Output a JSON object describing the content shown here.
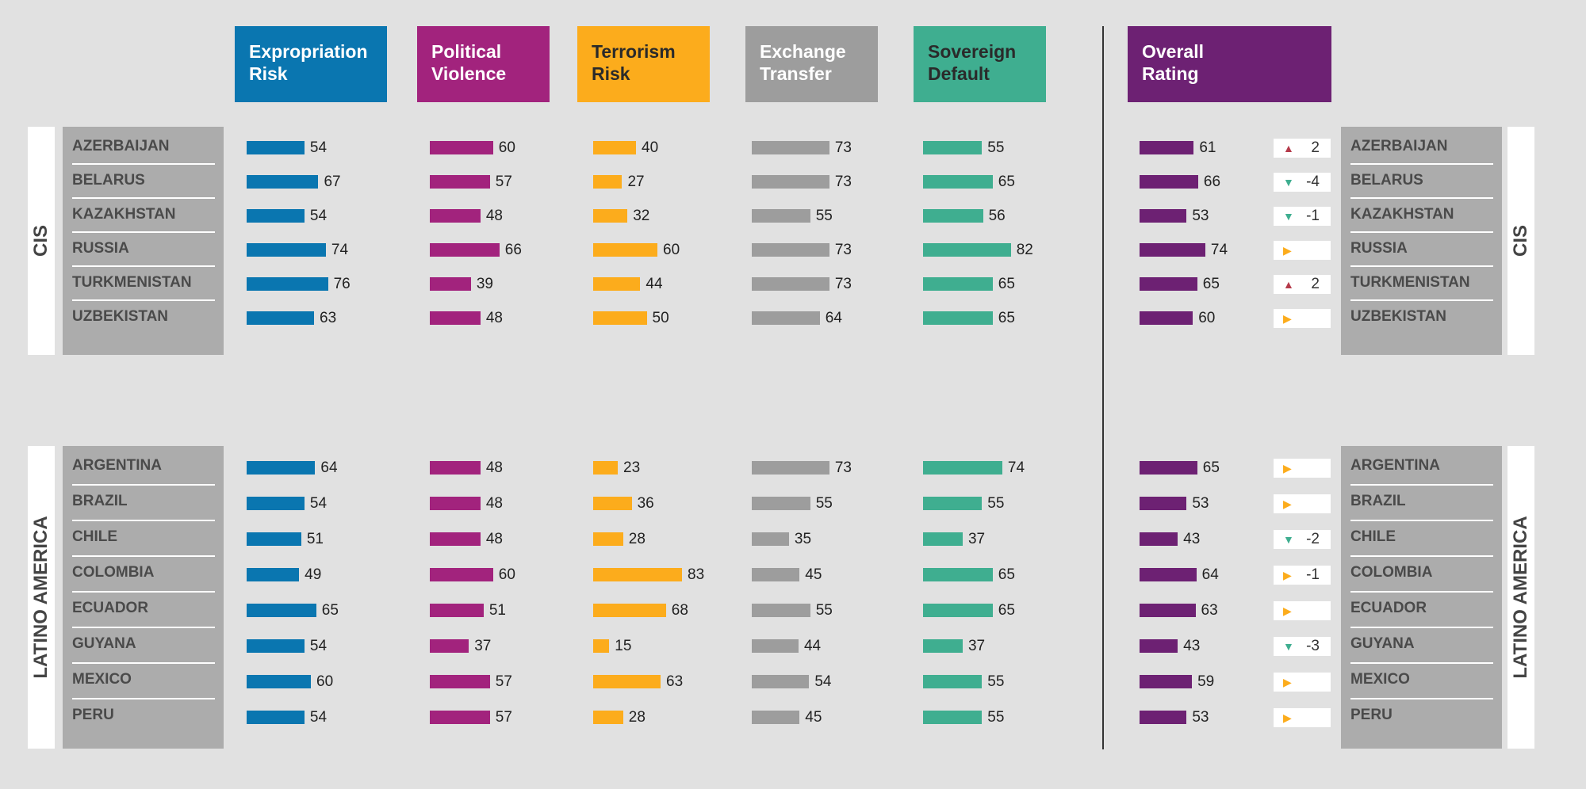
{
  "colors": {
    "expropriation": "#0a76b0",
    "political": "#a2237d",
    "terrorism": "#fcac1c",
    "exchange": "#9d9d9d",
    "sovereign": "#3fae90",
    "overall": "#6d2173",
    "up": "#b53a4a",
    "down": "#3fae90",
    "neutral": "#fcac1c"
  },
  "chart_data": {
    "type": "bar",
    "columns": [
      {
        "key": "expropriation",
        "label": "Expropriation\nRisk"
      },
      {
        "key": "political",
        "label": "Political\nViolence"
      },
      {
        "key": "terrorism",
        "label": "Terrorism\nRisk"
      },
      {
        "key": "exchange",
        "label": "Exchange\nTransfer"
      },
      {
        "key": "sovereign",
        "label": "Sovereign\nDefault"
      },
      {
        "key": "overall",
        "label": "Overall\nRating"
      }
    ],
    "regions": [
      {
        "name": "CIS",
        "countries": [
          {
            "name": "AZERBAIJAN",
            "expropriation": 54,
            "political": 60,
            "terrorism": 40,
            "exchange": 73,
            "sovereign": 55,
            "overall": 61,
            "change": "2",
            "direction": "up"
          },
          {
            "name": "BELARUS",
            "expropriation": 67,
            "political": 57,
            "terrorism": 27,
            "exchange": 73,
            "sovereign": 65,
            "overall": 66,
            "change": "-4",
            "direction": "down"
          },
          {
            "name": "KAZAKHSTAN",
            "expropriation": 54,
            "political": 48,
            "terrorism": 32,
            "exchange": 55,
            "sovereign": 56,
            "overall": 53,
            "change": "-1",
            "direction": "down"
          },
          {
            "name": "RUSSIA",
            "expropriation": 74,
            "political": 66,
            "terrorism": 60,
            "exchange": 73,
            "sovereign": 82,
            "overall": 74,
            "change": "",
            "direction": "neutral"
          },
          {
            "name": "TURKMENISTAN",
            "expropriation": 76,
            "political": 39,
            "terrorism": 44,
            "exchange": 73,
            "sovereign": 65,
            "overall": 65,
            "change": "2",
            "direction": "up"
          },
          {
            "name": "UZBEKISTAN",
            "expropriation": 63,
            "political": 48,
            "terrorism": 50,
            "exchange": 64,
            "sovereign": 65,
            "overall": 60,
            "change": "",
            "direction": "neutral"
          }
        ]
      },
      {
        "name": "LATINO AMERICA",
        "countries": [
          {
            "name": "ARGENTINA",
            "expropriation": 64,
            "political": 48,
            "terrorism": 23,
            "exchange": 73,
            "sovereign": 74,
            "overall": 65,
            "change": "",
            "direction": "neutral"
          },
          {
            "name": "BRAZIL",
            "expropriation": 54,
            "political": 48,
            "terrorism": 36,
            "exchange": 55,
            "sovereign": 55,
            "overall": 53,
            "change": "",
            "direction": "neutral"
          },
          {
            "name": "CHILE",
            "expropriation": 51,
            "political": 48,
            "terrorism": 28,
            "exchange": 35,
            "sovereign": 37,
            "overall": 43,
            "change": "-2",
            "direction": "down"
          },
          {
            "name": "COLOMBIA",
            "expropriation": 49,
            "political": 60,
            "terrorism": 83,
            "exchange": 45,
            "sovereign": 65,
            "overall": 64,
            "change": "-1",
            "direction": "neutral"
          },
          {
            "name": "ECUADOR",
            "expropriation": 65,
            "political": 51,
            "terrorism": 68,
            "exchange": 55,
            "sovereign": 65,
            "overall": 63,
            "change": "",
            "direction": "neutral"
          },
          {
            "name": "GUYANA",
            "expropriation": 54,
            "political": 37,
            "terrorism": 15,
            "exchange": 44,
            "sovereign": 37,
            "overall": 43,
            "change": "-3",
            "direction": "down"
          },
          {
            "name": "MEXICO",
            "expropriation": 60,
            "political": 57,
            "terrorism": 63,
            "exchange": 54,
            "sovereign": 55,
            "overall": 59,
            "change": "",
            "direction": "neutral"
          },
          {
            "name": "PERU",
            "expropriation": 54,
            "political": 57,
            "terrorism": 28,
            "exchange": 45,
            "sovereign": 55,
            "overall": 53,
            "change": "",
            "direction": "neutral"
          }
        ]
      }
    ]
  }
}
